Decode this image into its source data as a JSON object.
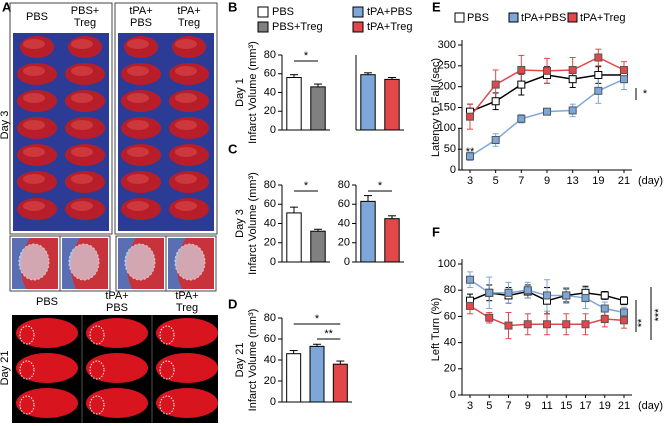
{
  "panel_a": {
    "label": "A",
    "top_headers": [
      [
        "PBS"
      ],
      [
        "PBS+",
        "Treg"
      ],
      [
        "tPA+",
        "PBS"
      ],
      [
        "tPA+",
        "Treg"
      ]
    ],
    "day_top": "Day 3",
    "bottom_headers": [
      [
        "PBS"
      ],
      [
        "tPA+",
        "PBS"
      ],
      [
        "tPA+",
        "Treg"
      ]
    ],
    "day_bottom": "Day 21"
  },
  "bar_legend": [
    {
      "name": "PBS",
      "color": "#ffffff"
    },
    {
      "name": "tPA+PBS",
      "color": "#7da7d9"
    },
    {
      "name": "PBS+Treg",
      "color": "#808080"
    },
    {
      "name": "tPA+Treg",
      "color": "#e2474a"
    }
  ],
  "chart_data": [
    {
      "type": "bar",
      "panel": "B",
      "ylabel": [
        "Day 1",
        "Infarct Volume (mm³)"
      ],
      "values": [
        56,
        46
      ],
      "errors": [
        3,
        3
      ],
      "colors": [
        "#ffffff",
        "#808080"
      ],
      "ylim": [
        0,
        80
      ],
      "yticks": [
        0,
        20,
        40,
        60,
        80
      ],
      "significance": [
        {
          "label": "*",
          "from": 0,
          "to": 1
        }
      ]
    },
    {
      "type": "bar",
      "values": [
        59,
        54
      ],
      "errors": [
        2,
        2
      ],
      "colors": [
        "#7da7d9",
        "#e2474a"
      ],
      "ylim": [
        0,
        80
      ]
    },
    {
      "type": "bar",
      "panel": "C",
      "ylabel": [
        "Day 3",
        "Infarct Volume (mm³)"
      ],
      "values": [
        51,
        32
      ],
      "errors": [
        6,
        2
      ],
      "colors": [
        "#ffffff",
        "#808080"
      ],
      "ylim": [
        0,
        80
      ],
      "yticks": [
        0,
        20,
        40,
        60,
        80
      ],
      "significance": [
        {
          "label": "*",
          "from": 0,
          "to": 1
        }
      ]
    },
    {
      "type": "bar",
      "values": [
        63,
        45
      ],
      "errors": [
        6,
        3
      ],
      "colors": [
        "#7da7d9",
        "#e2474a"
      ],
      "ylim": [
        0,
        80
      ],
      "yticks": [
        0,
        20,
        40,
        60,
        80
      ],
      "significance": [
        {
          "label": "*",
          "from": 0,
          "to": 1
        }
      ]
    },
    {
      "type": "bar",
      "panel": "D",
      "ylabel": [
        "Day 21",
        "Infarct Volume (mm³)"
      ],
      "values": [
        46,
        53,
        36
      ],
      "errors": [
        3,
        2,
        3
      ],
      "colors": [
        "#ffffff",
        "#7da7d9",
        "#e2474a"
      ],
      "ylim": [
        0,
        80
      ],
      "yticks": [
        0,
        20,
        40,
        60,
        80
      ],
      "significance": [
        {
          "label": "*",
          "from": 0,
          "to": 2
        },
        {
          "label": "**",
          "from": 1,
          "to": 2
        }
      ]
    },
    {
      "type": "line",
      "panel": "E",
      "ylabel": "Latency to Fall (sec)",
      "xlabel": "(day)",
      "categories": [
        "3",
        "5",
        "7",
        "9",
        "13",
        "19",
        "21"
      ],
      "ylim": [
        0,
        300
      ],
      "yticks": [
        0,
        50,
        100,
        150,
        200,
        250,
        300
      ],
      "series": [
        {
          "name": "PBS",
          "color": "#000000",
          "fill": "#ffffff",
          "values": [
            140,
            165,
            205,
            228,
            218,
            228,
            228
          ],
          "errors": [
            18,
            20,
            25,
            20,
            20,
            20,
            15
          ]
        },
        {
          "name": "tPA+PBS",
          "color": "#7da7d9",
          "fill": "#7da7d9",
          "values": [
            33,
            72,
            123,
            140,
            143,
            190,
            218
          ],
          "errors": [
            10,
            15,
            10,
            5,
            15,
            30,
            25
          ]
        },
        {
          "name": "tPA+Treg",
          "color": "#e2474a",
          "fill": "#e2474a",
          "values": [
            128,
            205,
            240,
            238,
            240,
            270,
            240
          ],
          "errors": [
            30,
            35,
            35,
            30,
            30,
            20,
            20
          ]
        }
      ],
      "annotations": [
        "*",
        "**"
      ]
    },
    {
      "type": "line",
      "panel": "F",
      "ylabel": "Left Turn (%)",
      "xlabel": "(day)",
      "categories": [
        "3",
        "5",
        "7",
        "9",
        "11",
        "15",
        "17",
        "19",
        "21"
      ],
      "ylim": [
        0,
        100
      ],
      "yticks": [
        0,
        20,
        40,
        60,
        80,
        100
      ],
      "series": [
        {
          "name": "PBS",
          "color": "#000000",
          "fill": "#ffffff",
          "values": [
            72,
            78,
            76,
            79,
            72,
            76,
            78,
            76,
            72
          ],
          "errors": [
            5,
            6,
            6,
            5,
            10,
            5,
            5,
            3,
            3
          ]
        },
        {
          "name": "tPA+PBS",
          "color": "#7da7d9",
          "fill": "#7da7d9",
          "values": [
            88,
            78,
            78,
            80,
            76,
            76,
            74,
            66,
            63
          ],
          "errors": [
            6,
            12,
            8,
            6,
            12,
            6,
            8,
            5,
            4
          ]
        },
        {
          "name": "tPA+Treg",
          "color": "#e2474a",
          "fill": "#e2474a",
          "values": [
            68,
            59,
            53,
            54,
            54,
            54,
            54,
            58,
            57
          ],
          "errors": [
            6,
            4,
            10,
            8,
            8,
            8,
            8,
            6,
            6
          ]
        }
      ],
      "annotations": [
        "**",
        "***"
      ]
    }
  ]
}
